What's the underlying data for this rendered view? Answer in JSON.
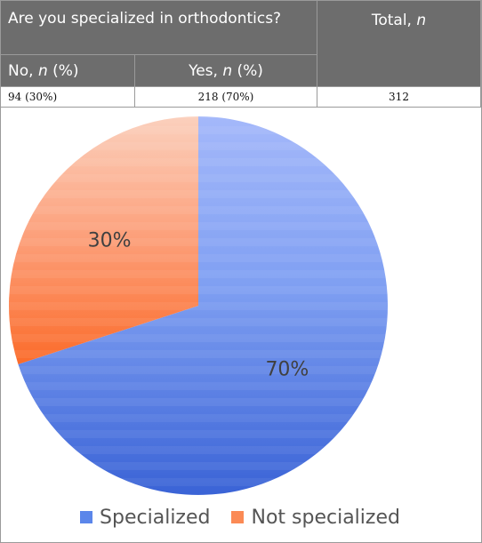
{
  "table": {
    "question": "Are you specialized in orthodontics?",
    "total_label": "Total,",
    "total_var": "n",
    "no_label": "No,",
    "no_var": "n",
    "no_pct_suffix": "(%)",
    "yes_label": "Yes,",
    "yes_var": "n",
    "yes_pct_suffix": "(%)",
    "no_value": "94 (30%)",
    "yes_value": "218 (70%)",
    "total_value": "312"
  },
  "chart_data": {
    "type": "pie",
    "slices": [
      {
        "label": "Specialized",
        "value": 70,
        "display": "70%",
        "color": "#5b86ea"
      },
      {
        "label": "Not specialized",
        "value": 30,
        "display": "30%",
        "color": "#fb8a55"
      }
    ],
    "start_angle_deg": 0,
    "direction": "clockwise",
    "legend_position": "bottom"
  },
  "legend": {
    "items": [
      {
        "label": "Specialized",
        "color": "#5b86ea"
      },
      {
        "label": "Not specialized",
        "color": "#fb8a55"
      }
    ]
  }
}
